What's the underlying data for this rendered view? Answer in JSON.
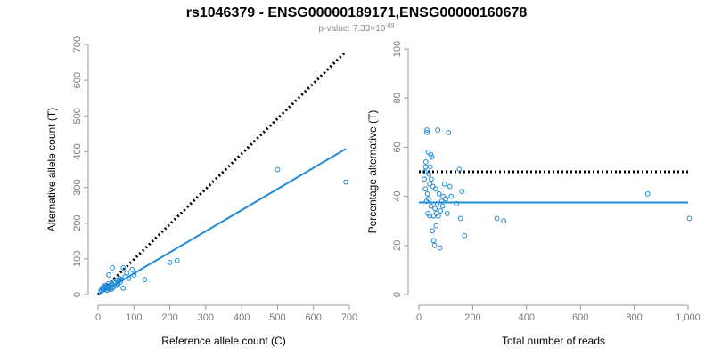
{
  "title": "rs1046379 - ENSG00000189171,ENSG00000160678",
  "subtitle": {
    "prefix": "p-value: 7.33×10",
    "exponent": "-89"
  },
  "colors": {
    "points": "#1f8ad8",
    "fit_line": "#1f8ad8",
    "reference_line": "#000000"
  },
  "chart_data": [
    {
      "type": "scatter",
      "xlabel": "Reference allele count (C)",
      "ylabel": "Alternative allele count (T)",
      "xlim": [
        0,
        700
      ],
      "ylim": [
        0,
        700
      ],
      "xticks": [
        0,
        100,
        200,
        300,
        400,
        500,
        600,
        700
      ],
      "xtick_labels": [
        "0",
        "100",
        "200",
        "300",
        "400",
        "500",
        "600",
        "700"
      ],
      "yticks": [
        0,
        100,
        200,
        300,
        400,
        500,
        600,
        700
      ],
      "ytick_labels": [
        "0",
        "100",
        "200",
        "300",
        "400",
        "500",
        "600",
        "700"
      ],
      "grid": false,
      "points": {
        "x": [
          8,
          10,
          12,
          14,
          15,
          18,
          20,
          22,
          24,
          25,
          26,
          28,
          30,
          32,
          33,
          35,
          36,
          38,
          40,
          42,
          45,
          48,
          50,
          52,
          55,
          58,
          60,
          62,
          65,
          70,
          75,
          80,
          85,
          95,
          100,
          130,
          200,
          220,
          500,
          690,
          30,
          40,
          60,
          70,
          18,
          22,
          38,
          55
        ],
        "y": [
          12,
          10,
          18,
          15,
          20,
          14,
          22,
          16,
          25,
          12,
          18,
          30,
          20,
          15,
          22,
          25,
          18,
          30,
          28,
          20,
          35,
          32,
          25,
          40,
          30,
          38,
          45,
          35,
          42,
          18,
          50,
          60,
          45,
          70,
          55,
          42,
          90,
          95,
          350,
          315,
          55,
          75,
          40,
          75,
          25,
          20,
          15,
          28
        ]
      },
      "reference_line": {
        "style": "dotted",
        "x": [
          0,
          690
        ],
        "y": [
          0,
          680
        ]
      },
      "fit_line": {
        "style": "solid",
        "x": [
          0,
          690
        ],
        "y": [
          0,
          408
        ]
      }
    },
    {
      "type": "scatter",
      "xlabel": "Total number of reads",
      "ylabel": "Percentage alternative (T)",
      "xlim": [
        0,
        1000
      ],
      "ylim": [
        0,
        100
      ],
      "xticks": [
        0,
        200,
        400,
        600,
        800,
        1000
      ],
      "xtick_labels": [
        "0",
        "200",
        "400",
        "600",
        "800",
        "1,000"
      ],
      "yticks": [
        0,
        20,
        40,
        60,
        80,
        100
      ],
      "ytick_labels": [
        "0",
        "20",
        "40",
        "60",
        "80",
        "100"
      ],
      "grid": false,
      "points": {
        "x": [
          20,
          22,
          24,
          25,
          26,
          28,
          30,
          30,
          32,
          34,
          35,
          36,
          38,
          40,
          40,
          42,
          44,
          45,
          46,
          48,
          50,
          52,
          55,
          55,
          58,
          60,
          62,
          64,
          65,
          68,
          70,
          72,
          75,
          78,
          80,
          85,
          88,
          90,
          95,
          100,
          105,
          110,
          115,
          120,
          140,
          150,
          155,
          160,
          170,
          290,
          315,
          850,
          1005
        ],
        "y": [
          47,
          50,
          43,
          52,
          54,
          38,
          66,
          67,
          41,
          33,
          58,
          39,
          49,
          32,
          45,
          52,
          57,
          36,
          47,
          56,
          26,
          44,
          22,
          32,
          20,
          35,
          43,
          28,
          33,
          37,
          67,
          32,
          41,
          19,
          34,
          38,
          36,
          40,
          45,
          39,
          33,
          66,
          44,
          40,
          37,
          51,
          31,
          42,
          24,
          31,
          30,
          41,
          31
        ]
      },
      "reference_line": {
        "style": "dotted",
        "x": [
          0,
          1000
        ],
        "y": [
          50,
          50
        ]
      },
      "fit_line": {
        "style": "solid",
        "x": [
          0,
          1000
        ],
        "y": [
          37.5,
          37.5
        ]
      }
    }
  ]
}
